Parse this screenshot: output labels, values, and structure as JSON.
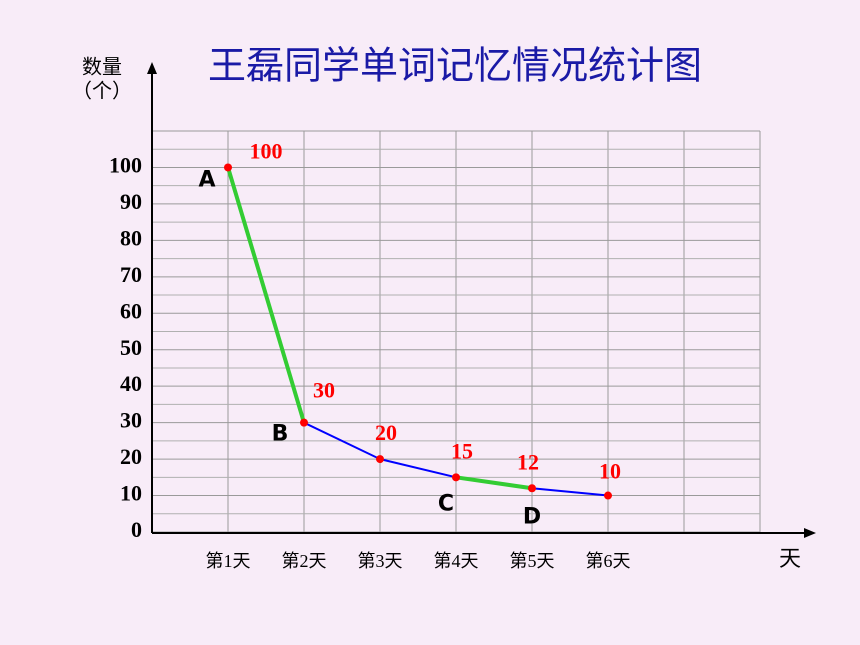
{
  "chart_data": {
    "type": "line",
    "title": "王磊同学单词记忆情况统计图",
    "y_label": "数量",
    "y_unit": "（个）",
    "x_label": "天",
    "categories": [
      "第1天",
      "第2天",
      "第3天",
      "第4天",
      "第5天",
      "第6天"
    ],
    "values": [
      100,
      30,
      20,
      15,
      12,
      10
    ],
    "point_labels": [
      "A",
      "B",
      null,
      "C",
      "D",
      null
    ],
    "color": "#0000ff",
    "marker_color": "#ff0000",
    "value_label_color": "#ff0000",
    "highlight": [
      [
        0,
        1
      ],
      [
        3,
        4
      ]
    ],
    "highlight_color": "#33cc33",
    "ylim": [
      0,
      110
    ],
    "yticks": [
      0,
      10,
      20,
      30,
      40,
      50,
      60,
      70,
      80,
      90,
      100
    ],
    "grid": true
  }
}
